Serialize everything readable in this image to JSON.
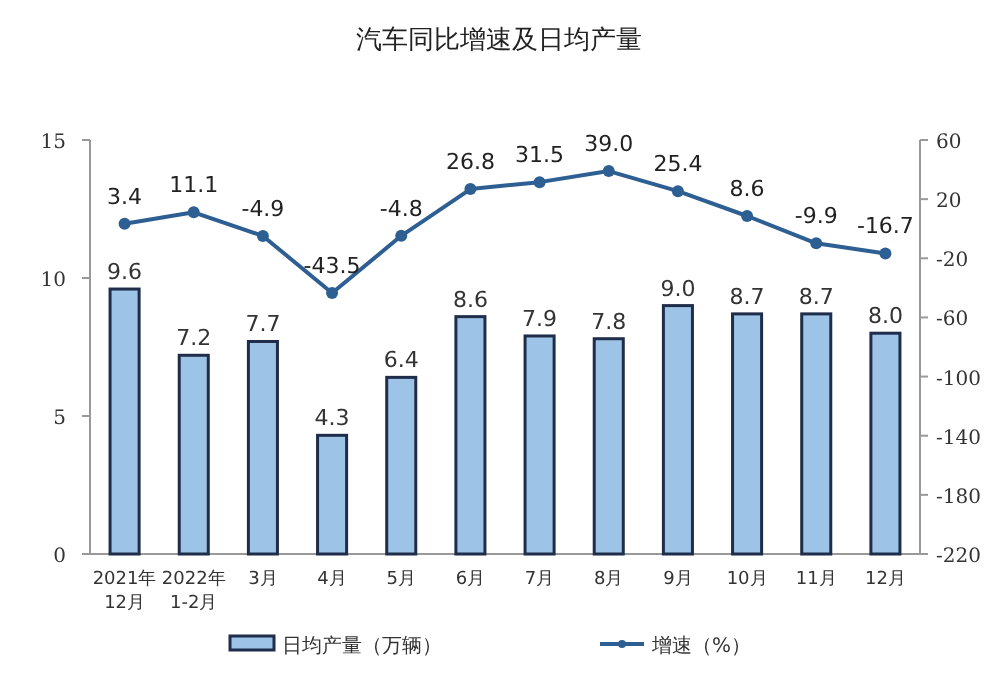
{
  "chart_data": {
    "type": "bar",
    "title": "汽车同比增速及日均产量",
    "categories": [
      "2021年\n12月",
      "2022年\n1-2月",
      "3月",
      "4月",
      "5月",
      "6月",
      "7月",
      "8月",
      "9月",
      "10月",
      "11月",
      "12月"
    ],
    "series": [
      {
        "name": "日均产量（万辆）",
        "color": "#9dc3e6",
        "values": [
          9.6,
          7.2,
          7.7,
          4.3,
          6.4,
          8.6,
          7.9,
          7.8,
          9.0,
          8.7,
          8.7,
          8.0
        ],
        "value_labels": [
          "9.6",
          "7.2",
          "7.7",
          "4.3",
          "6.4",
          "8.6",
          "7.9",
          "7.8",
          "9.0",
          "8.7",
          "8.7",
          "8.0"
        ]
      },
      {
        "name": "增速（%）",
        "type": "line",
        "axis": "y2",
        "color": "#2e5f93",
        "marker": "circle",
        "values": [
          3.4,
          11.1,
          -4.9,
          -43.5,
          -4.8,
          26.8,
          31.5,
          39.0,
          25.4,
          8.6,
          -9.9,
          -16.7
        ],
        "value_labels": [
          "3.4",
          "11.1",
          "-4.9",
          "-43.5",
          "-4.8",
          "26.8",
          "31.5",
          "39.0",
          "25.4",
          "8.6",
          "-9.9",
          "-16.7"
        ]
      }
    ],
    "ylim": [
      0,
      15
    ],
    "yticks": [
      0,
      5,
      10,
      15
    ],
    "y2lim": [
      -220,
      60
    ],
    "y2ticks": [
      -220,
      -180,
      -140,
      -100,
      -60,
      -20,
      20,
      60
    ],
    "grid": false,
    "legend": "bottom"
  }
}
